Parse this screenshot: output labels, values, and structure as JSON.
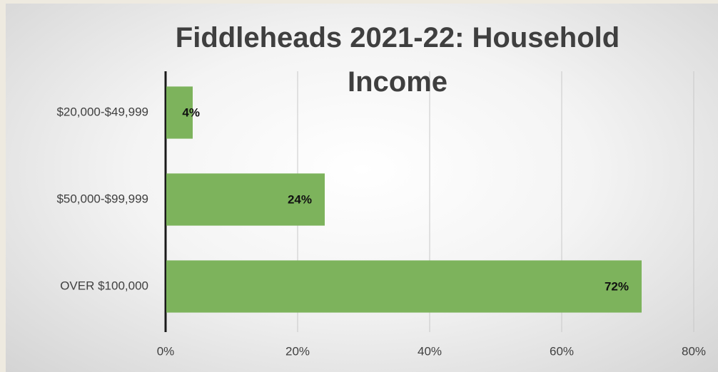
{
  "chart_data": {
    "type": "bar",
    "orientation": "horizontal",
    "title": "Fiddleheads 2021-22: Household Income",
    "categories": [
      "$20,000-$49,999",
      "$50,000-$99,999",
      "OVER $100,000"
    ],
    "values": [
      4,
      24,
      72
    ],
    "value_labels": [
      "4%",
      "24%",
      "72%"
    ],
    "color": "#7db35c",
    "xlim": [
      0,
      80
    ],
    "xticks": [
      {
        "value": 0,
        "label": "0%"
      },
      {
        "value": 20,
        "label": "20%"
      },
      {
        "value": 40,
        "label": "40%"
      },
      {
        "value": 60,
        "label": "60%"
      },
      {
        "value": 80,
        "label": "80%"
      }
    ],
    "grid": true
  }
}
